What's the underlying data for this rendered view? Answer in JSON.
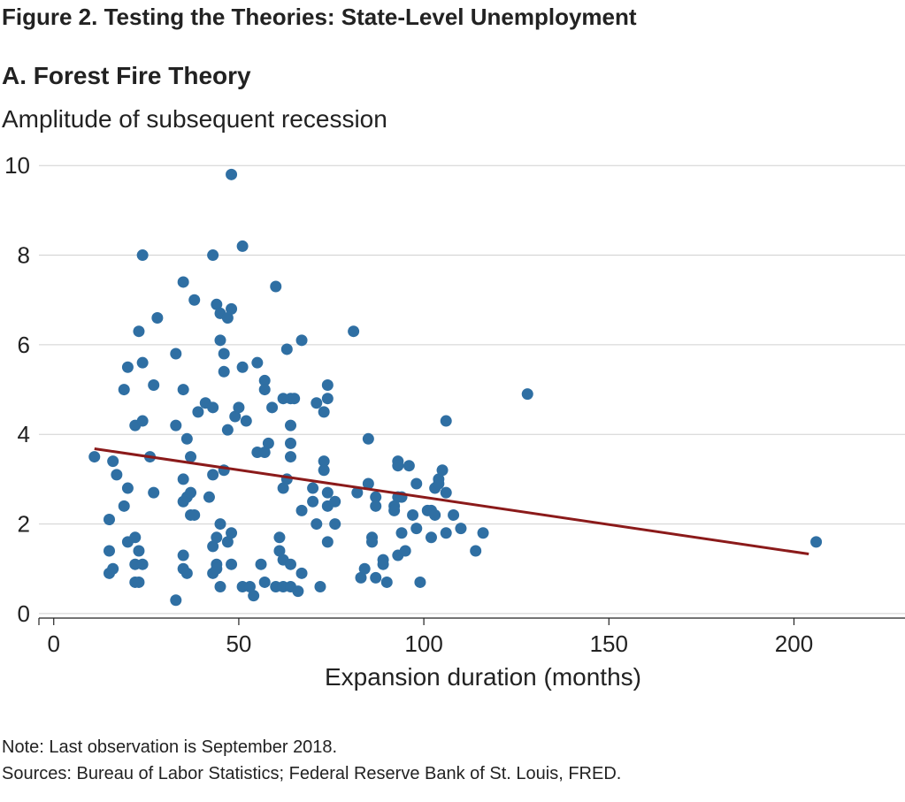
{
  "figure_title": "Figure 2.  Testing the Theories: State-Level Unemployment",
  "panel_title": "A. Forest Fire Theory",
  "note": "Note: Last observation is September 2018.",
  "sources": "Sources: Bureau of Labor Statistics; Federal Reserve Bank of St. Louis, FRED.",
  "colors": {
    "points": "#2f6fa3",
    "trend": "#8b1a1a",
    "grid": "#d0d0d0",
    "axis": "#222222"
  },
  "chart_data": {
    "type": "scatter",
    "title": "A. Forest Fire Theory",
    "xlabel": "Expansion duration (months)",
    "ylabel": "Amplitude of subsequent recession",
    "xlim": [
      -4,
      230
    ],
    "ylim": [
      -0.1,
      10.3
    ],
    "xticks": [
      0,
      50,
      100,
      150,
      200
    ],
    "yticks": [
      0,
      2,
      4,
      6,
      8,
      10
    ],
    "grid": "horizontal",
    "points": [
      [
        11,
        3.5
      ],
      [
        15,
        2.1
      ],
      [
        15,
        1.4
      ],
      [
        15,
        0.9
      ],
      [
        16,
        1.0
      ],
      [
        16,
        3.4
      ],
      [
        17,
        3.1
      ],
      [
        19,
        5.0
      ],
      [
        19,
        2.4
      ],
      [
        20,
        5.5
      ],
      [
        20,
        2.8
      ],
      [
        20,
        1.6
      ],
      [
        22,
        4.2
      ],
      [
        22,
        1.7
      ],
      [
        22,
        1.1
      ],
      [
        22,
        0.7
      ],
      [
        23,
        6.3
      ],
      [
        23,
        1.4
      ],
      [
        23,
        0.7
      ],
      [
        24,
        8.0
      ],
      [
        24,
        5.6
      ],
      [
        24,
        4.3
      ],
      [
        24,
        1.1
      ],
      [
        26,
        3.5
      ],
      [
        27,
        5.1
      ],
      [
        27,
        2.7
      ],
      [
        28,
        6.6
      ],
      [
        33,
        5.8
      ],
      [
        33,
        4.2
      ],
      [
        33,
        0.3
      ],
      [
        35,
        7.4
      ],
      [
        35,
        5.0
      ],
      [
        35,
        3.0
      ],
      [
        35,
        2.5
      ],
      [
        35,
        1.3
      ],
      [
        35,
        1.0
      ],
      [
        36,
        3.9
      ],
      [
        36,
        2.6
      ],
      [
        36,
        0.9
      ],
      [
        37,
        3.5
      ],
      [
        37,
        2.7
      ],
      [
        37,
        2.2
      ],
      [
        38,
        7.0
      ],
      [
        38,
        2.2
      ],
      [
        39,
        4.5
      ],
      [
        41,
        4.7
      ],
      [
        42,
        2.6
      ],
      [
        43,
        8.0
      ],
      [
        43,
        4.6
      ],
      [
        43,
        3.1
      ],
      [
        43,
        1.5
      ],
      [
        43,
        0.9
      ],
      [
        44,
        6.9
      ],
      [
        44,
        1.7
      ],
      [
        44,
        1.1
      ],
      [
        44,
        1.0
      ],
      [
        45,
        6.7
      ],
      [
        45,
        6.1
      ],
      [
        45,
        2.0
      ],
      [
        45,
        0.6
      ],
      [
        46,
        5.8
      ],
      [
        46,
        5.4
      ],
      [
        46,
        3.2
      ],
      [
        47,
        6.6
      ],
      [
        47,
        4.1
      ],
      [
        47,
        1.6
      ],
      [
        48,
        9.8
      ],
      [
        48,
        6.8
      ],
      [
        48,
        1.8
      ],
      [
        48,
        1.1
      ],
      [
        49,
        4.4
      ],
      [
        50,
        4.6
      ],
      [
        51,
        8.2
      ],
      [
        51,
        5.5
      ],
      [
        51,
        0.6
      ],
      [
        52,
        4.3
      ],
      [
        53,
        0.6
      ],
      [
        54,
        0.4
      ],
      [
        55,
        5.6
      ],
      [
        55,
        3.6
      ],
      [
        56,
        1.1
      ],
      [
        57,
        5.2
      ],
      [
        57,
        5.0
      ],
      [
        57,
        3.6
      ],
      [
        57,
        0.7
      ],
      [
        58,
        3.8
      ],
      [
        59,
        4.6
      ],
      [
        60,
        7.3
      ],
      [
        60,
        0.6
      ],
      [
        61,
        1.7
      ],
      [
        61,
        1.4
      ],
      [
        62,
        4.8
      ],
      [
        62,
        2.8
      ],
      [
        62,
        1.2
      ],
      [
        62,
        0.6
      ],
      [
        63,
        5.9
      ],
      [
        63,
        3.0
      ],
      [
        64,
        4.8
      ],
      [
        64,
        4.2
      ],
      [
        64,
        3.8
      ],
      [
        64,
        3.5
      ],
      [
        64,
        1.1
      ],
      [
        64,
        0.6
      ],
      [
        65,
        4.8
      ],
      [
        66,
        0.5
      ],
      [
        67,
        6.1
      ],
      [
        67,
        2.3
      ],
      [
        67,
        0.9
      ],
      [
        70,
        2.8
      ],
      [
        70,
        2.5
      ],
      [
        71,
        4.7
      ],
      [
        71,
        2.0
      ],
      [
        72,
        0.6
      ],
      [
        73,
        4.5
      ],
      [
        73,
        3.4
      ],
      [
        73,
        3.2
      ],
      [
        74,
        5.1
      ],
      [
        74,
        4.8
      ],
      [
        74,
        2.7
      ],
      [
        74,
        2.4
      ],
      [
        74,
        1.6
      ],
      [
        76,
        2.5
      ],
      [
        76,
        2.0
      ],
      [
        81,
        6.3
      ],
      [
        82,
        2.7
      ],
      [
        83,
        0.8
      ],
      [
        84,
        1.0
      ],
      [
        85,
        3.9
      ],
      [
        85,
        2.9
      ],
      [
        86,
        1.7
      ],
      [
        86,
        1.6
      ],
      [
        87,
        2.6
      ],
      [
        87,
        2.4
      ],
      [
        87,
        0.8
      ],
      [
        89,
        1.2
      ],
      [
        89,
        1.1
      ],
      [
        90,
        0.7
      ],
      [
        92,
        2.4
      ],
      [
        92,
        2.3
      ],
      [
        93,
        3.4
      ],
      [
        93,
        3.3
      ],
      [
        93,
        2.6
      ],
      [
        93,
        1.3
      ],
      [
        94,
        2.6
      ],
      [
        94,
        1.8
      ],
      [
        95,
        1.4
      ],
      [
        96,
        3.3
      ],
      [
        97,
        2.2
      ],
      [
        98,
        2.9
      ],
      [
        98,
        1.9
      ],
      [
        99,
        0.7
      ],
      [
        101,
        2.3
      ],
      [
        102,
        2.3
      ],
      [
        102,
        1.7
      ],
      [
        103,
        2.8
      ],
      [
        103,
        2.2
      ],
      [
        104,
        3.0
      ],
      [
        104,
        2.9
      ],
      [
        105,
        3.2
      ],
      [
        106,
        4.3
      ],
      [
        106,
        2.7
      ],
      [
        106,
        1.8
      ],
      [
        108,
        2.2
      ],
      [
        110,
        1.9
      ],
      [
        114,
        1.4
      ],
      [
        116,
        1.8
      ],
      [
        128,
        4.9
      ],
      [
        206,
        1.6
      ]
    ],
    "trend_line": {
      "x": [
        11,
        204
      ],
      "y": [
        3.68,
        1.33
      ]
    }
  }
}
